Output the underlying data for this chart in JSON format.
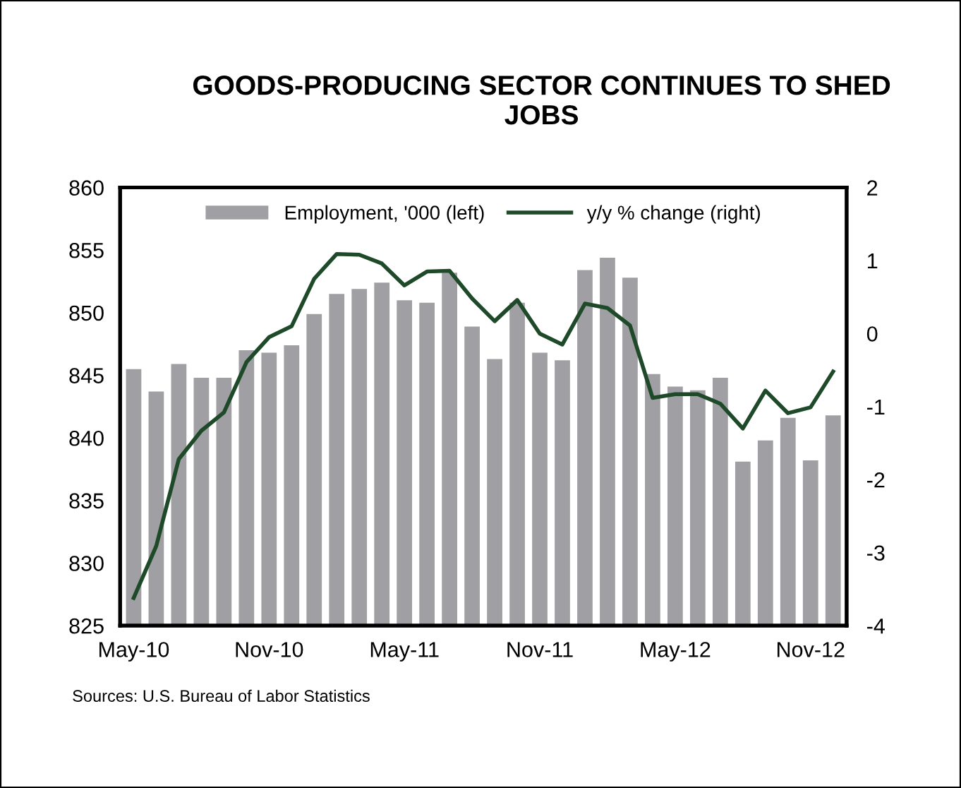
{
  "chart_data": {
    "type": "bar",
    "title": "GOODS-PRODUCING SECTOR CONTINUES TO SHED JOBS",
    "categories": [
      "May-10",
      null,
      null,
      null,
      null,
      null,
      "Nov-10",
      null,
      null,
      null,
      null,
      null,
      "May-11",
      null,
      null,
      null,
      null,
      null,
      "Nov-11",
      null,
      null,
      null,
      null,
      null,
      "May-12",
      null,
      null,
      null,
      null,
      null,
      "Nov-12",
      null
    ],
    "series": [
      {
        "name": "Employment, '000 (left)",
        "color": "#a0a0a4",
        "values": [
          845.5,
          843.7,
          845.9,
          844.8,
          844.8,
          847.0,
          846.8,
          847.4,
          849.9,
          851.5,
          851.9,
          852.4,
          851.0,
          850.8,
          853.2,
          848.9,
          846.3,
          850.8,
          846.8,
          846.2,
          853.4,
          854.4,
          852.8,
          845.1,
          844.1,
          843.8,
          844.8,
          838.1,
          839.8,
          841.6,
          838.2,
          841.8
        ]
      },
      {
        "name": "y/y % change (right)",
        "type": "line",
        "axis": "y2",
        "color": "#1e4a2a",
        "values": [
          -3.62,
          -2.91,
          -1.72,
          -1.33,
          -1.08,
          -0.39,
          -0.05,
          0.1,
          0.75,
          1.09,
          1.08,
          0.96,
          0.66,
          0.85,
          0.86,
          0.48,
          0.17,
          0.46,
          0.0,
          -0.15,
          0.41,
          0.35,
          0.11,
          -0.88,
          -0.83,
          -0.83,
          -0.96,
          -1.3,
          -0.78,
          -1.09,
          -1.01,
          -0.52
        ]
      }
    ],
    "ylim": [
      825,
      860
    ],
    "yticks": [
      825,
      830,
      835,
      840,
      845,
      850,
      855,
      860
    ],
    "y2lim": [
      -4,
      2
    ],
    "y2ticks": [
      -4,
      -3,
      -2,
      -1,
      0,
      1,
      2
    ],
    "legend": "top",
    "grid": false,
    "marker": "none",
    "line_style": "solid",
    "annotations": [
      "Sources: U.S. Bureau of Labor Statistics"
    ]
  }
}
